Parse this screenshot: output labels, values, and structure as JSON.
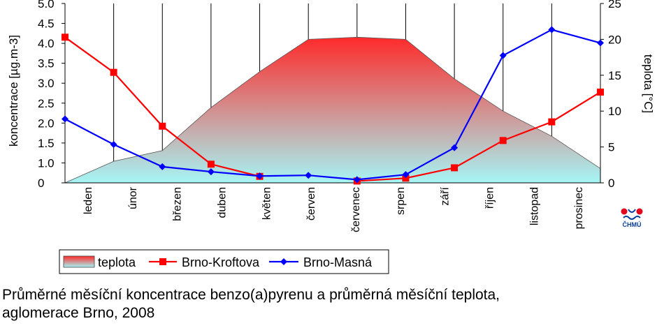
{
  "chart_data": {
    "type": "line",
    "categories": [
      "leden",
      "únor",
      "březen",
      "duben",
      "květen",
      "červen",
      "červenec",
      "srpen",
      "září",
      "říjen",
      "listopad",
      "prosinec"
    ],
    "ylabel": "koncentrace [µg.m-3]",
    "ylim": [
      0,
      5.0
    ],
    "yticks": [
      "0",
      "1.0",
      "1.5",
      "2.0",
      "2.5",
      "3.0",
      "3.5",
      "4.0",
      "4.5",
      "5.0"
    ],
    "y2label": "teplota [°C]",
    "y2lim": [
      0,
      25
    ],
    "y2ticks": [
      "0",
      "5",
      "10",
      "15",
      "20",
      "25"
    ],
    "grid": true,
    "legend_position": "bottom-left",
    "series": [
      {
        "name": "teplota",
        "type": "area",
        "axis": "right",
        "values": [
          0,
          3.0,
          4.5,
          10.5,
          15.5,
          20.0,
          20.3,
          20.0,
          14.5,
          10.0,
          6.5,
          2.0
        ],
        "color_top": "#ff2a2a",
        "color_bottom": "#a6f5f5"
      },
      {
        "name": "Brno-Kroftova",
        "type": "line",
        "axis": "left",
        "values": [
          4.06,
          3.08,
          1.58,
          0.52,
          0.18,
          null,
          0.05,
          0.13,
          0.42,
          1.18,
          1.7,
          2.53
        ],
        "color": "#ff0000",
        "marker": "square"
      },
      {
        "name": "Brno-Masná",
        "type": "line",
        "axis": "left",
        "values": [
          1.78,
          1.07,
          0.45,
          0.31,
          0.19,
          0.21,
          0.09,
          0.23,
          0.98,
          3.55,
          4.27,
          3.9
        ],
        "color": "#0000ff",
        "marker": "diamond"
      }
    ]
  },
  "caption": {
    "line1": "Průměrné měsíční koncentrace benzo(a)pyrenu a průměrná měsíční teplota,",
    "line2": "aglomerace Brno, 2008"
  },
  "logo": {
    "text": "ČHMÚ",
    "colors": [
      "#e5001c",
      "#0b3e9a"
    ]
  }
}
